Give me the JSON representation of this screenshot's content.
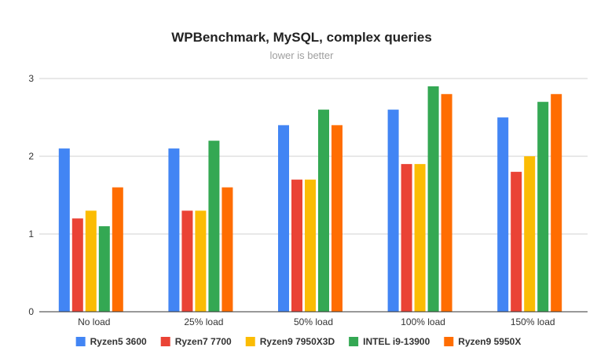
{
  "chart_data": {
    "type": "bar",
    "title": "WPBenchmark, MySQL, complex queries",
    "subtitle": "lower is better",
    "xlabel": "",
    "ylabel": "",
    "categories": [
      "No load",
      "25% load",
      "50% load",
      "100% load",
      "150% load"
    ],
    "ylim": [
      0,
      3
    ],
    "yticks": [
      0,
      1,
      2,
      3
    ],
    "grid": true,
    "legend_position": "bottom",
    "series": [
      {
        "name": "Ryzen5 3600",
        "color": "#4285f4",
        "values": [
          2.1,
          2.1,
          2.4,
          2.6,
          2.5
        ]
      },
      {
        "name": "Ryzen7 7700",
        "color": "#ea4335",
        "values": [
          1.2,
          1.3,
          1.7,
          1.9,
          1.8
        ]
      },
      {
        "name": "Ryzen9 7950X3D",
        "color": "#fbbc04",
        "values": [
          1.3,
          1.3,
          1.7,
          1.9,
          2.0
        ]
      },
      {
        "name": "INTEL i9-13900",
        "color": "#34a853",
        "values": [
          1.1,
          2.2,
          2.6,
          2.9,
          2.7
        ]
      },
      {
        "name": "Ryzen9 5950X",
        "color": "#ff6d01",
        "values": [
          1.6,
          1.6,
          2.4,
          2.8,
          2.8
        ]
      }
    ]
  }
}
